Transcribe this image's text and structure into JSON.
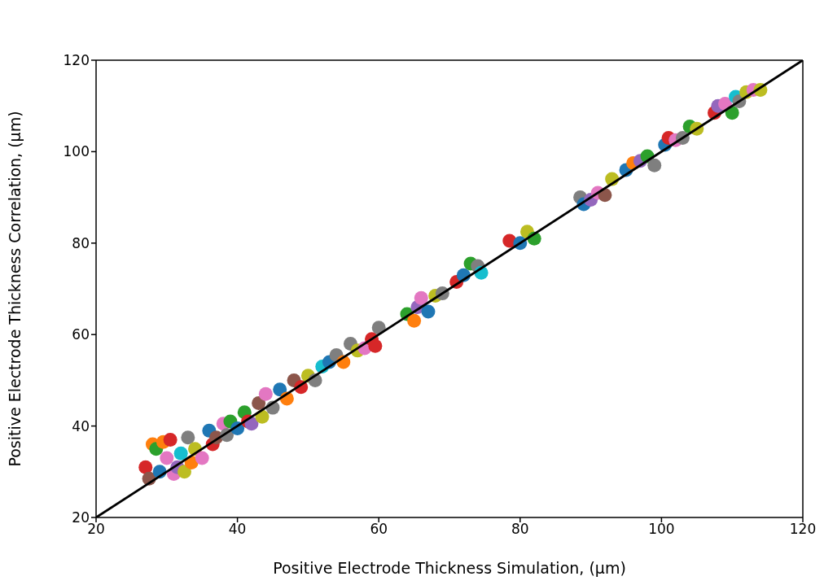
{
  "chart_data": {
    "type": "scatter",
    "xlabel": "Positive Electrode Thickness Simulation, (μm)",
    "ylabel": "Positive Electrode Thickness Correlation, (μm)",
    "xlim": [
      20,
      120
    ],
    "ylim": [
      20,
      120
    ],
    "xticks": [
      20,
      40,
      60,
      80,
      100,
      120
    ],
    "yticks": [
      20,
      40,
      60,
      80,
      100,
      120
    ],
    "grid": false,
    "legend": false,
    "marker": "circle",
    "series": [
      {
        "x": [
          27,
          27.5,
          28,
          28.5,
          29,
          29.5,
          30,
          30.5,
          31,
          31.5,
          32,
          32.5,
          33,
          33.5,
          34,
          35,
          36,
          36.5,
          37,
          38,
          38.5,
          39,
          40,
          41,
          41.5,
          42,
          43,
          43.5,
          44,
          45,
          46,
          47,
          48,
          49,
          50,
          51,
          52,
          53,
          54,
          55,
          56,
          57,
          58,
          59,
          60,
          59.5,
          64,
          65,
          65.5,
          66,
          67,
          68,
          69,
          71,
          72,
          73,
          74,
          74.5,
          78.5,
          80,
          81,
          82,
          88.5,
          89,
          90,
          91,
          92,
          93,
          95,
          96,
          97,
          98,
          99,
          100.5,
          101,
          102,
          103,
          104,
          105,
          107.5,
          108,
          109,
          110,
          110.5,
          111,
          112,
          113,
          114
        ],
        "values": [
          31,
          28.5,
          36,
          35,
          30,
          36.5,
          33,
          37,
          29.5,
          31,
          34,
          30,
          37.5,
          32,
          35,
          33,
          39,
          36,
          37.5,
          40.5,
          38,
          41,
          39.5,
          43,
          41,
          40.5,
          45,
          42,
          47,
          44,
          48,
          46,
          50,
          48.5,
          51,
          50,
          53,
          54,
          55.5,
          54,
          58,
          56.5,
          57,
          59,
          61.5,
          57.5,
          64.5,
          63,
          66,
          68,
          65,
          68.5,
          69,
          71.5,
          73,
          75.5,
          75,
          73.5,
          80.5,
          80,
          82.5,
          81,
          90,
          88.5,
          89.5,
          91,
          90.5,
          94,
          96,
          97.5,
          98,
          99,
          97,
          101.5,
          103,
          102.5,
          103,
          105.5,
          105,
          108.5,
          110,
          110.5,
          108.5,
          112,
          111,
          113,
          113.5,
          113.5
        ],
        "colors": [
          "#d62728",
          "#8c564b",
          "#ff7f0e",
          "#2ca02c",
          "#1f77b4",
          "#ff7f0e",
          "#e377c2",
          "#d62728",
          "#e377c2",
          "#9467bd",
          "#17becf",
          "#bcbd22",
          "#7f7f7f",
          "#ff7f0e",
          "#bcbd22",
          "#e377c2",
          "#1f77b4",
          "#d62728",
          "#8c564b",
          "#e377c2",
          "#7f7f7f",
          "#2ca02c",
          "#1f77b4",
          "#2ca02c",
          "#d62728",
          "#9467bd",
          "#8c564b",
          "#bcbd22",
          "#e377c2",
          "#7f7f7f",
          "#1f77b4",
          "#ff7f0e",
          "#8c564b",
          "#d62728",
          "#bcbd22",
          "#7f7f7f",
          "#17becf",
          "#1f77b4",
          "#7f7f7f",
          "#ff7f0e",
          "#7f7f7f",
          "#bcbd22",
          "#e377c2",
          "#d62728",
          "#7f7f7f",
          "#d62728",
          "#2ca02c",
          "#ff7f0e",
          "#9467bd",
          "#e377c2",
          "#1f77b4",
          "#bcbd22",
          "#7f7f7f",
          "#d62728",
          "#1f77b4",
          "#2ca02c",
          "#7f7f7f",
          "#17becf",
          "#d62728",
          "#1f77b4",
          "#bcbd22",
          "#2ca02c",
          "#7f7f7f",
          "#1f77b4",
          "#9467bd",
          "#e377c2",
          "#8c564b",
          "#bcbd22",
          "#1f77b4",
          "#ff7f0e",
          "#9467bd",
          "#2ca02c",
          "#7f7f7f",
          "#1f77b4",
          "#d62728",
          "#e377c2",
          "#7f7f7f",
          "#2ca02c",
          "#bcbd22",
          "#d62728",
          "#9467bd",
          "#e377c2",
          "#2ca02c",
          "#17becf",
          "#7f7f7f",
          "#bcbd22",
          "#e377c2",
          "#bcbd22"
        ]
      },
      {
        "type": "line",
        "x": [
          20,
          120
        ],
        "values": [
          20,
          120
        ],
        "color": "#000000",
        "marker": "none"
      }
    ]
  }
}
